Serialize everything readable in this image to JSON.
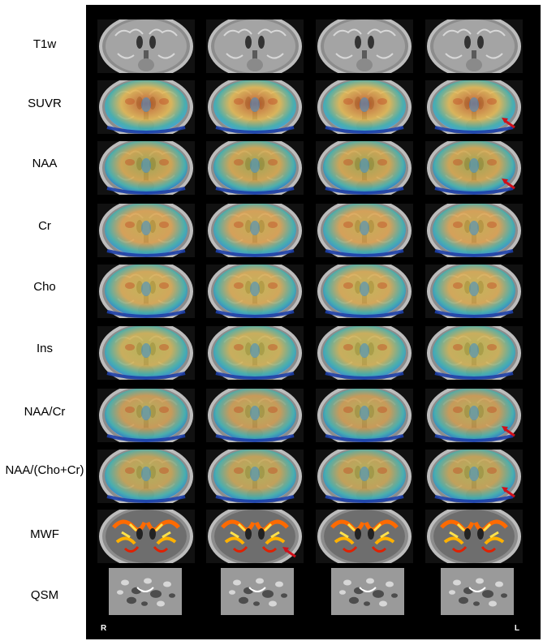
{
  "rows": [
    {
      "label": "T1w",
      "overlay": "none"
    },
    {
      "label": "SUVR",
      "overlay": "suvr"
    },
    {
      "label": "NAA",
      "overlay": "naa"
    },
    {
      "label": "Cr",
      "overlay": "cr"
    },
    {
      "label": "Cho",
      "overlay": "cho"
    },
    {
      "label": "Ins",
      "overlay": "ins"
    },
    {
      "label": "NAA/Cr",
      "overlay": "naacr"
    },
    {
      "label": "NAA/(Cho+Cr)",
      "overlay": "naachocr"
    },
    {
      "label": "MWF",
      "overlay": "mwf"
    },
    {
      "label": "QSM",
      "overlay": "qsm"
    }
  ],
  "columns": 4,
  "arrows": [
    {
      "row": 1,
      "col": 3
    },
    {
      "row": 2,
      "col": 3
    },
    {
      "row": 6,
      "col": 3
    },
    {
      "row": 7,
      "col": 3
    },
    {
      "row": 8,
      "col": 1
    }
  ],
  "orientation": {
    "left": "R",
    "right": "L"
  },
  "colors": {
    "background": "#000000",
    "arrow": "#d0101a",
    "metabolite_warm": "#d9b84a",
    "metabolite_cool": "#2e8fd6",
    "mwf_hot": "#ff5a00"
  }
}
